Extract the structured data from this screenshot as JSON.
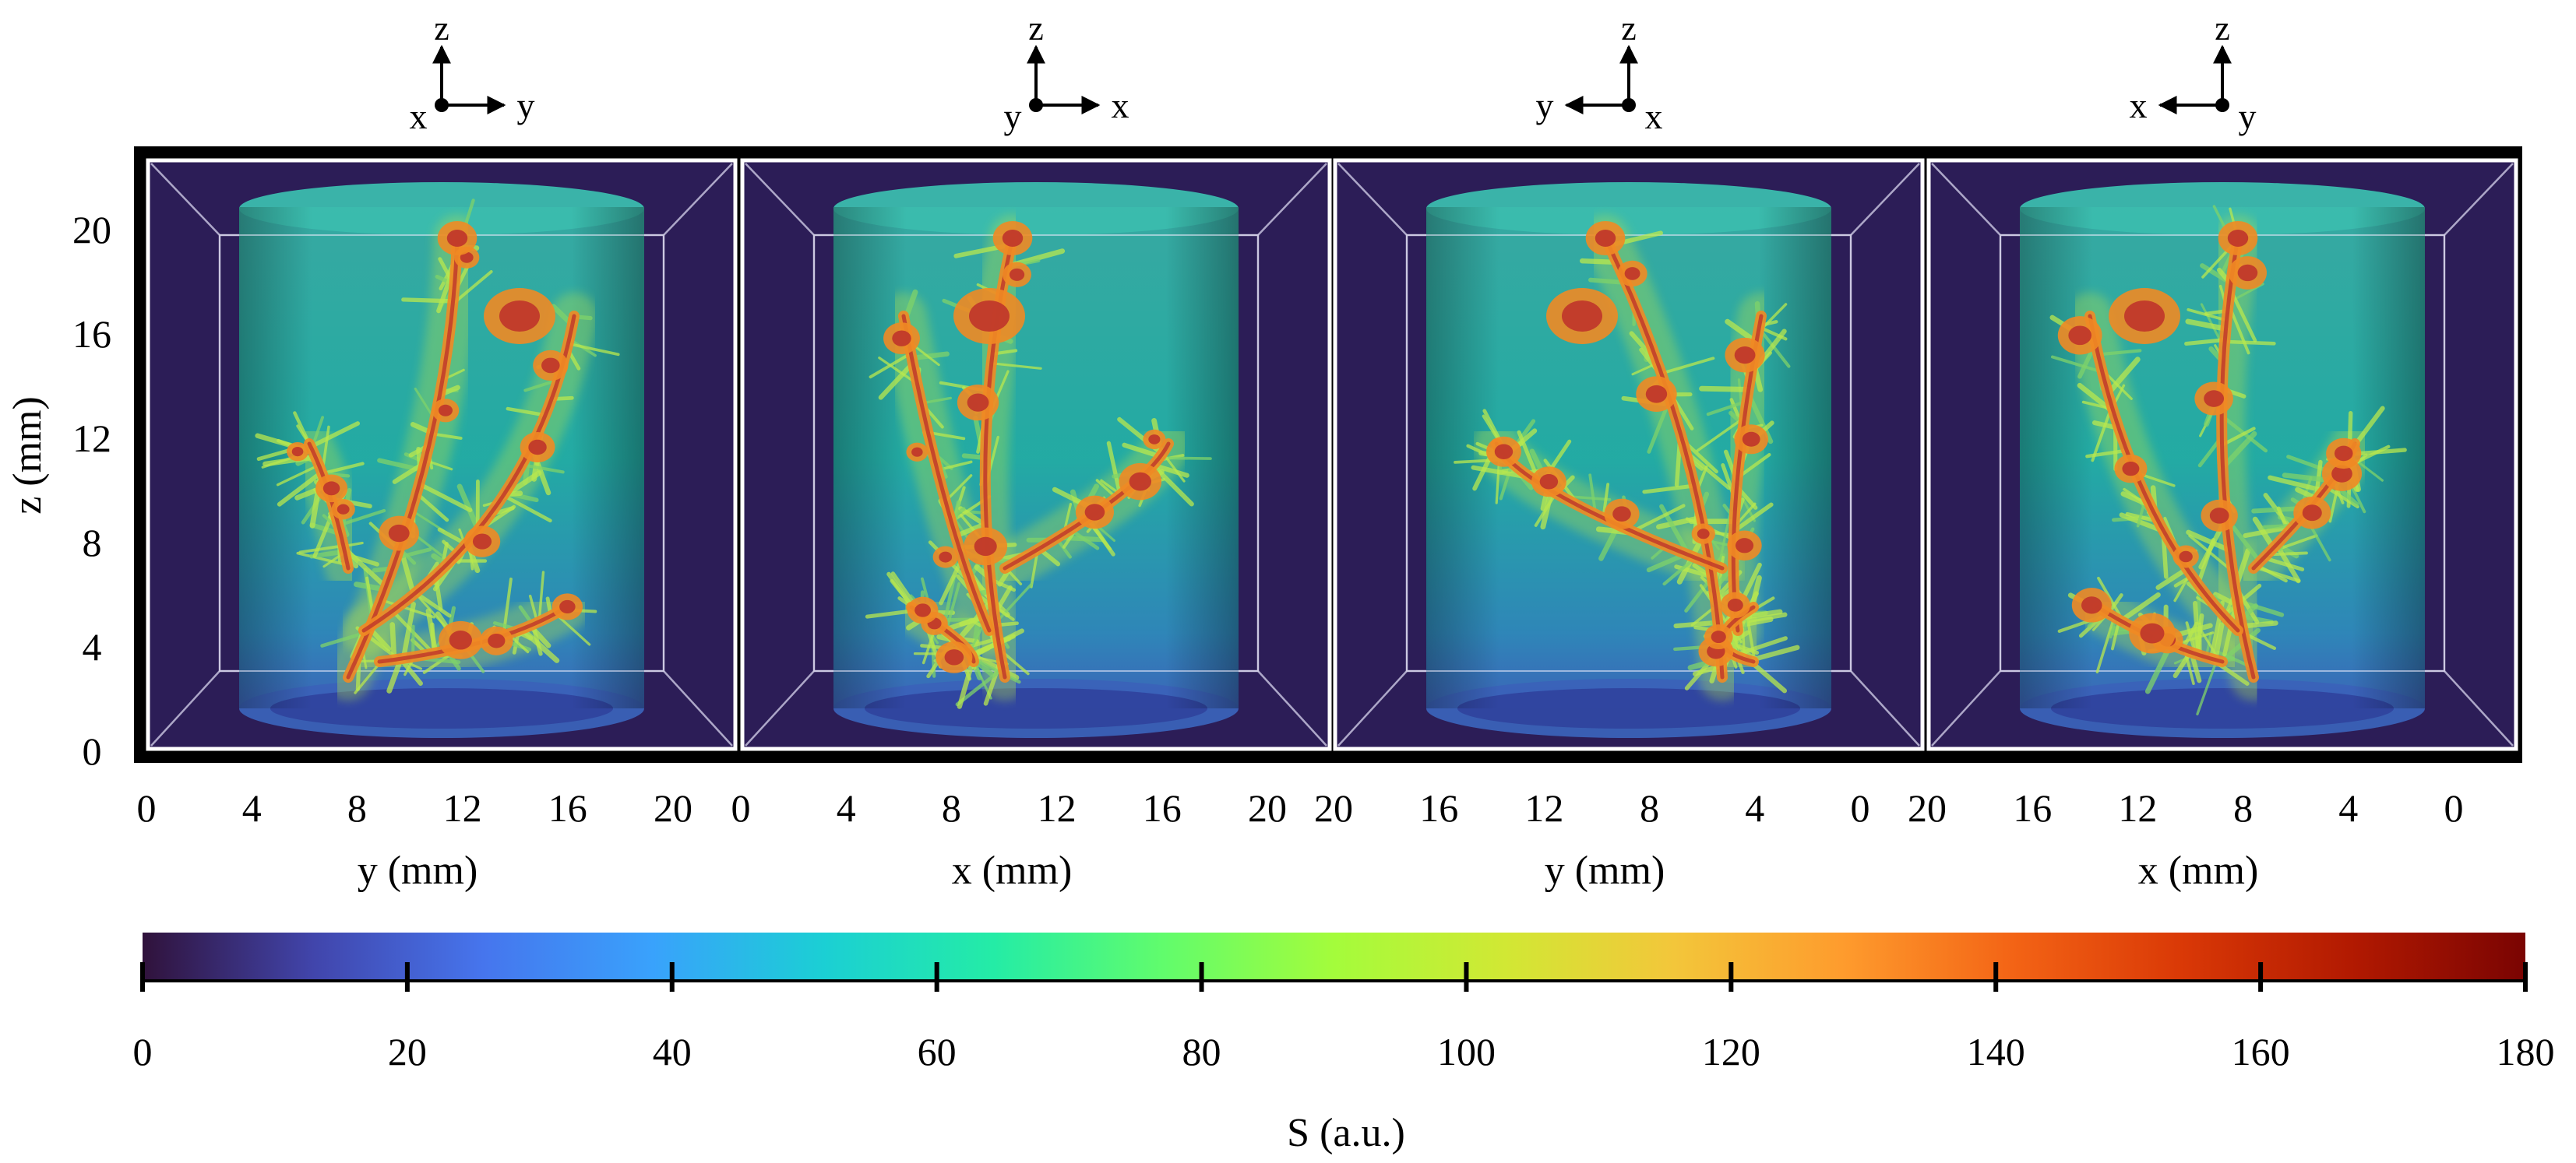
{
  "figure": {
    "panels": [
      {
        "axes_icon": {
          "up": "z",
          "right": "y",
          "dot": "x"
        },
        "dot_label_side": "left",
        "right_arrow": true,
        "x_ticks": [
          "0",
          "4",
          "8",
          "12",
          "16",
          "20"
        ],
        "x_label": "y (mm)"
      },
      {
        "axes_icon": {
          "up": "z",
          "right": "x",
          "dot": "y"
        },
        "dot_label_side": "left",
        "right_arrow": true,
        "x_ticks": [
          "0",
          "4",
          "8",
          "12",
          "16",
          "20"
        ],
        "x_label": "x (mm)"
      },
      {
        "axes_icon": {
          "up": "z",
          "left": "y",
          "dot": "x"
        },
        "dot_label_side": "right",
        "right_arrow": false,
        "x_ticks": [
          "20",
          "16",
          "12",
          "8",
          "4",
          "0"
        ],
        "x_label": "y (mm)"
      },
      {
        "axes_icon": {
          "up": "z",
          "left": "x",
          "dot": "y"
        },
        "dot_label_side": "right",
        "right_arrow": false,
        "x_ticks": [
          "20",
          "16",
          "12",
          "8",
          "4",
          "0"
        ],
        "x_label": "x (mm)"
      }
    ],
    "y_axis": {
      "label": "z (mm)",
      "ticks": [
        "20",
        "16",
        "12",
        "8",
        "4",
        "0"
      ]
    },
    "colorbar": {
      "label": "S (a.u.)",
      "ticks": [
        "0",
        "20",
        "40",
        "60",
        "80",
        "100",
        "120",
        "140",
        "160",
        "180"
      ],
      "range": [
        0,
        180
      ],
      "colors": [
        "#30123b",
        "#4145ab",
        "#4675ed",
        "#39a2fc",
        "#1bcfd4",
        "#24eca6",
        "#61fc6c",
        "#a4fc3b",
        "#d1e834",
        "#f3c63a",
        "#fe9b2d",
        "#f36315",
        "#d93806",
        "#b11901",
        "#7a0402"
      ]
    },
    "colors": {
      "background": "#2c1d57",
      "cylinder_top": "#35b3a6",
      "cylinder_mid": "#1fb8a8",
      "cylinder_bottom": "#3d74c4",
      "plant_core": "#c0392b",
      "plant_mid": "#f08a24",
      "plant_outer": "#b6e34a"
    }
  }
}
